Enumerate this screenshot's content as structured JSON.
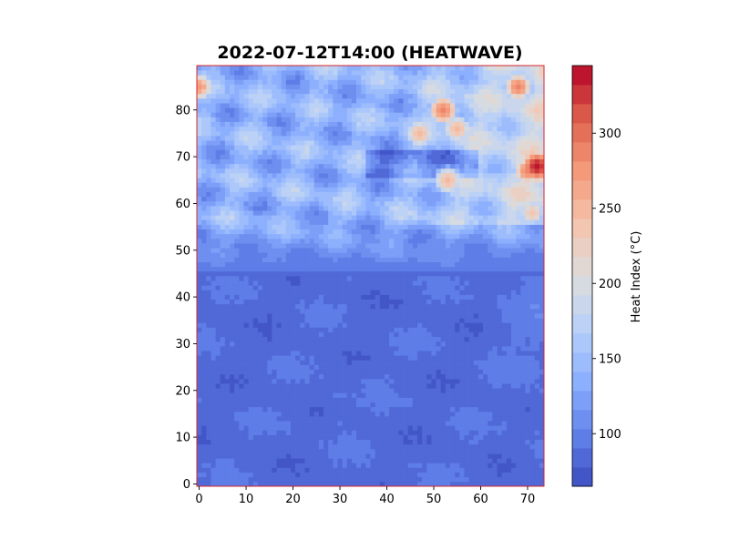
{
  "chart_data": {
    "type": "heatmap",
    "title": "2022-07-12T14:00 (HEATWAVE)",
    "xlabel": "",
    "ylabel": "",
    "xlim": [
      -0.5,
      73.5
    ],
    "ylim": [
      -0.5,
      89.5
    ],
    "grid_cols": 74,
    "grid_rows": 90,
    "x_ticks": [
      0,
      10,
      20,
      30,
      40,
      50,
      60,
      70
    ],
    "y_ticks": [
      0,
      10,
      20,
      30,
      40,
      50,
      60,
      70,
      80
    ],
    "grid": false,
    "colormap": "coolwarm",
    "colorbar": {
      "label": "Heat Index (°C)",
      "range": [
        65,
        345
      ],
      "ticks": [
        100,
        150,
        200,
        250,
        300
      ],
      "levels": 22
    },
    "regions": [
      {
        "description": "south/central band (rows 0-45)",
        "value_range": [
          75,
          110
        ]
      },
      {
        "description": "northern band (rows 50-89)",
        "value_range": [
          110,
          230
        ]
      }
    ],
    "hotspots": [
      {
        "x": 52,
        "y": 80,
        "value": 290
      },
      {
        "x": 47,
        "y": 75,
        "value": 250
      },
      {
        "x": 55,
        "y": 76,
        "value": 255
      },
      {
        "x": 53,
        "y": 65,
        "value": 255
      },
      {
        "x": 72,
        "y": 68,
        "value": 345
      },
      {
        "x": 70,
        "y": 67,
        "value": 285
      },
      {
        "x": 68,
        "y": 85,
        "value": 285
      },
      {
        "x": 0,
        "y": 85,
        "value": 270
      },
      {
        "x": 71,
        "y": 58,
        "value": 235
      }
    ],
    "colors": {
      "spine": "#d62728"
    }
  }
}
